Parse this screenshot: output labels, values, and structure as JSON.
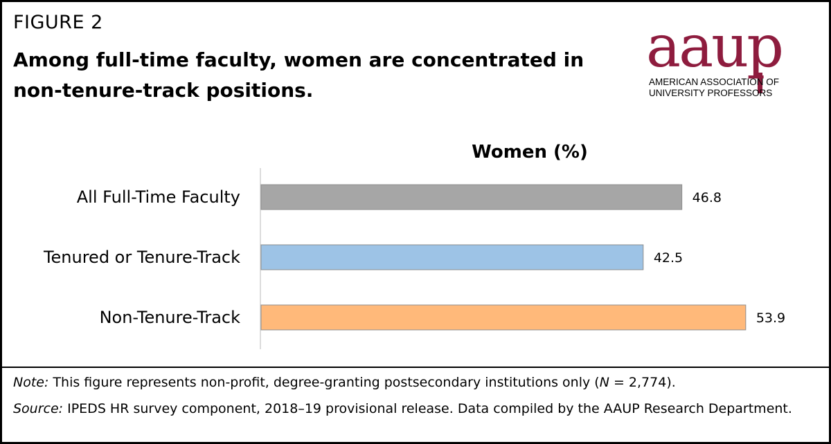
{
  "figure_label": "FIGURE 2",
  "title": "Among full-time faculty, women are concentrated in non-tenure-track positions.",
  "logo": {
    "word": "aaup",
    "line1": "AMERICAN ASSOCIATION OF",
    "line2": "UNIVERSITY PROFESSORS",
    "color": "#8e1c3e"
  },
  "chart_data": {
    "type": "bar",
    "orientation": "horizontal",
    "title": "Women (%)",
    "categories": [
      "All Full-Time Faculty",
      "Tenured or Tenure-Track",
      "Non-Tenure-Track"
    ],
    "values": [
      46.8,
      42.5,
      53.9
    ],
    "value_labels": [
      "46.8",
      "42.5",
      "53.9"
    ],
    "colors": [
      "#a6a6a6",
      "#9dc3e6",
      "#ffb97a"
    ],
    "xlim": [
      0,
      62
    ],
    "grid": false,
    "legend": "none"
  },
  "notes": {
    "note_prefix": "Note:",
    "note_text1": " This figure represents non-profit, degree-granting postsecondary institutions only (",
    "note_n": "N",
    "note_text2": " = 2,774).",
    "source_prefix": "Source:",
    "source_text": " IPEDS HR survey component, 2018–19 provisional release. Data compiled by the AAUP Research Department."
  }
}
